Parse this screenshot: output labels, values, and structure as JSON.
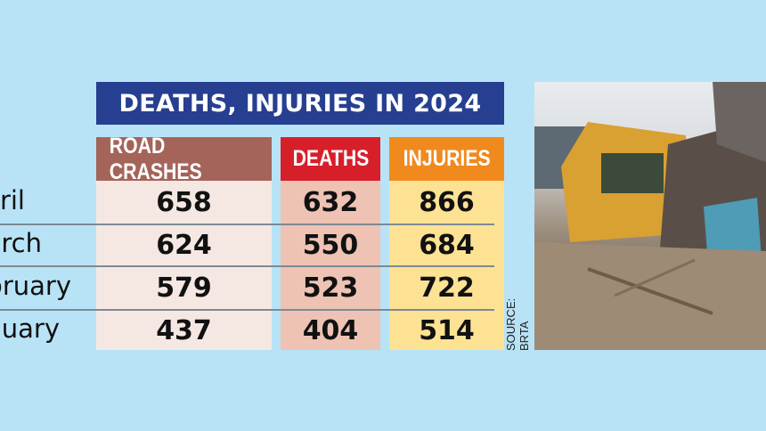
{
  "chart_data": {
    "type": "table",
    "title": "DEATHS, INJURIES IN 2024",
    "columns": [
      "ROAD CRASHES",
      "DEATHS",
      "INJURIES"
    ],
    "rows": [
      "April",
      "March",
      "February",
      "January"
    ],
    "series": [
      {
        "name": "ROAD CRASHES",
        "values": [
          658,
          624,
          579,
          437
        ]
      },
      {
        "name": "DEATHS",
        "values": [
          632,
          550,
          523,
          404
        ]
      },
      {
        "name": "INJURIES",
        "values": [
          866,
          684,
          722,
          514
        ]
      }
    ],
    "source": "SOURCE: BRTA"
  },
  "colors": {
    "background": "#b8e3f6",
    "title_bg": "#263f90",
    "road_crashes_header": "#a5645a",
    "deaths_header": "#d71f2a",
    "injuries_header": "#f08a1f",
    "road_crashes_fill": "#f5e8e3",
    "deaths_fill": "#eec3b4",
    "injuries_fill": "#fde294"
  },
  "photo": {
    "icon": "wrecked-vehicles-photo"
  }
}
